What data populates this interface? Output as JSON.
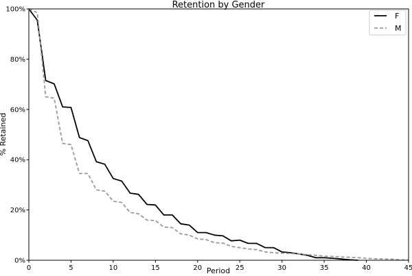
{
  "chart_data": {
    "type": "line",
    "title": "Retention by Gender",
    "xlabel": "Period",
    "ylabel": "% Retained",
    "xlim": [
      0,
      45
    ],
    "ylim": [
      0,
      1
    ],
    "x_ticks": [
      0,
      5,
      10,
      15,
      20,
      25,
      30,
      35,
      40,
      45
    ],
    "y_ticks": [
      0,
      0.2,
      0.4,
      0.6,
      0.8,
      1.0
    ],
    "x_tick_labels": [
      "0",
      "5",
      "10",
      "15",
      "20",
      "25",
      "30",
      "35",
      "40",
      "45"
    ],
    "y_tick_labels": [
      "0%",
      "20%",
      "40%",
      "60%",
      "80%",
      "100%"
    ],
    "grid": false,
    "legend_position": "top-right",
    "series": [
      {
        "name": "F",
        "color": "#000000",
        "style": "solid",
        "x": [
          0,
          1,
          2,
          3,
          4,
          5,
          6,
          7,
          8,
          9,
          10,
          11,
          12,
          13,
          14,
          15,
          16,
          17,
          18,
          19,
          20,
          21,
          22,
          23,
          24,
          25,
          26,
          27,
          28,
          29,
          30,
          31,
          32,
          33,
          34,
          35,
          36,
          37,
          38,
          39
        ],
        "y": [
          1.0,
          0.955,
          0.715,
          0.702,
          0.61,
          0.608,
          0.488,
          0.476,
          0.392,
          0.382,
          0.325,
          0.315,
          0.267,
          0.262,
          0.222,
          0.22,
          0.18,
          0.18,
          0.145,
          0.14,
          0.11,
          0.11,
          0.1,
          0.097,
          0.077,
          0.08,
          0.067,
          0.067,
          0.05,
          0.05,
          0.033,
          0.03,
          0.025,
          0.02,
          0.01,
          0.01,
          0.008,
          0.005,
          0.002,
          0.0
        ]
      },
      {
        "name": "M",
        "color": "#999999",
        "style": "dashed",
        "x": [
          0,
          1,
          2,
          3,
          4,
          5,
          6,
          7,
          8,
          9,
          10,
          11,
          12,
          13,
          14,
          15,
          16,
          17,
          18,
          19,
          20,
          21,
          22,
          23,
          24,
          25,
          26,
          27,
          28,
          29,
          30,
          31,
          32,
          33,
          34,
          35,
          36,
          37,
          38,
          39,
          40,
          41,
          42,
          43,
          44,
          45
        ],
        "y": [
          1.0,
          0.985,
          0.65,
          0.645,
          0.465,
          0.46,
          0.345,
          0.345,
          0.28,
          0.275,
          0.235,
          0.23,
          0.19,
          0.185,
          0.16,
          0.158,
          0.132,
          0.13,
          0.105,
          0.1,
          0.085,
          0.082,
          0.07,
          0.068,
          0.055,
          0.05,
          0.045,
          0.042,
          0.033,
          0.03,
          0.028,
          0.027,
          0.025,
          0.022,
          0.02,
          0.016,
          0.015,
          0.013,
          0.012,
          0.01,
          0.008,
          0.006,
          0.005,
          0.004,
          0.002,
          0.001
        ]
      }
    ]
  }
}
